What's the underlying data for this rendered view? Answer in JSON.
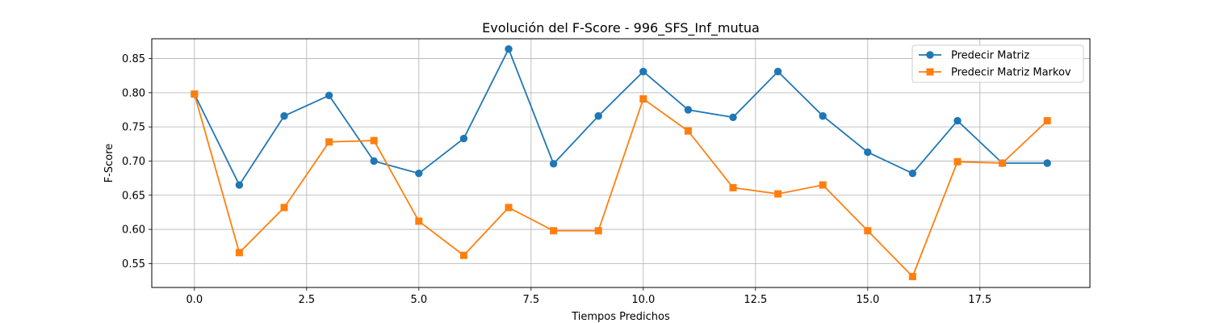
{
  "chart_data": {
    "type": "line",
    "title": "Evolución del F-Score - 996_SFS_Inf_mutua",
    "xlabel": "Tiempos Predichos",
    "ylabel": "F-Score",
    "xlim": [
      -0.95,
      19.95
    ],
    "ylim": [
      0.515,
      0.879
    ],
    "xticks": [
      0.0,
      2.5,
      5.0,
      7.5,
      10.0,
      12.5,
      15.0,
      17.5
    ],
    "xtick_labels": [
      "0.0",
      "2.5",
      "5.0",
      "7.5",
      "10.0",
      "12.5",
      "15.0",
      "17.5"
    ],
    "yticks": [
      0.55,
      0.6,
      0.65,
      0.7,
      0.75,
      0.8,
      0.85
    ],
    "ytick_labels": [
      "0.55",
      "0.60",
      "0.65",
      "0.70",
      "0.75",
      "0.80",
      "0.85"
    ],
    "grid": true,
    "legend_position": "top-right",
    "x": [
      0,
      1,
      2,
      3,
      4,
      5,
      6,
      7,
      8,
      9,
      10,
      11,
      12,
      13,
      14,
      15,
      16,
      17,
      18,
      19
    ],
    "series": [
      {
        "name": "Predecir Matriz",
        "color": "#1f77b4",
        "marker": "circle",
        "values": [
          0.798,
          0.665,
          0.766,
          0.796,
          0.7,
          0.682,
          0.733,
          0.864,
          0.696,
          0.766,
          0.831,
          0.775,
          0.764,
          0.831,
          0.766,
          0.713,
          0.682,
          0.759,
          0.697,
          0.697
        ]
      },
      {
        "name": "Predecir Matriz Markov",
        "color": "#ff7f0e",
        "marker": "square",
        "values": [
          0.798,
          0.566,
          0.632,
          0.728,
          0.73,
          0.612,
          0.562,
          0.632,
          0.598,
          0.598,
          0.791,
          0.744,
          0.661,
          0.652,
          0.665,
          0.598,
          0.531,
          0.699,
          0.697,
          0.759
        ]
      }
    ]
  }
}
